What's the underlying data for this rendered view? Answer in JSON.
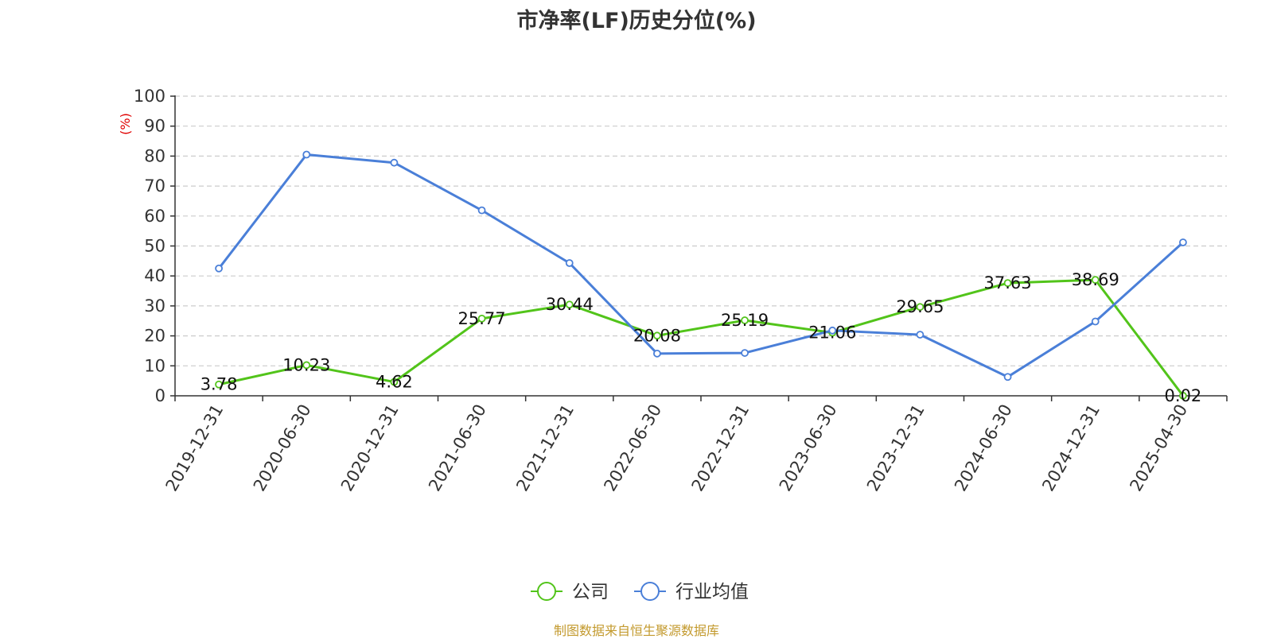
{
  "title": "市净率(LF)历史分位(%)",
  "source": "制图数据来自恒生聚源数据库",
  "chart_data": {
    "type": "line",
    "title": "市净率(LF)历史分位(%)",
    "ylabel": "(%)",
    "ylim": [
      0,
      100
    ],
    "yticks": [
      0,
      10,
      20,
      30,
      40,
      50,
      60,
      70,
      80,
      90,
      100
    ],
    "categories": [
      "2019-12-31",
      "2020-06-30",
      "2020-12-31",
      "2021-06-30",
      "2021-12-31",
      "2022-06-30",
      "2022-12-31",
      "2023-06-30",
      "2023-12-31",
      "2024-06-30",
      "2024-12-31",
      "2025-04-30"
    ],
    "grid": "horizontal-dashed",
    "legend": "bottom-center",
    "series": [
      {
        "name": "公司",
        "color": "#52c41a",
        "values": [
          3.78,
          10.23,
          4.62,
          25.77,
          30.44,
          20.08,
          25.19,
          21.06,
          29.65,
          37.63,
          38.69,
          0.02
        ],
        "labels": [
          "3.78",
          "10.23",
          "4.62",
          "25.77",
          "30.44",
          "20.08",
          "25.19",
          "21.06",
          "29.65",
          "37.63",
          "38.69",
          "0.02"
        ]
      },
      {
        "name": "行业均值",
        "color": "#4a7fd8",
        "values": [
          42.5,
          80.5,
          77.8,
          61.9,
          44.3,
          14.1,
          14.3,
          21.8,
          20.4,
          6.3,
          24.8,
          51.2
        ]
      }
    ]
  }
}
